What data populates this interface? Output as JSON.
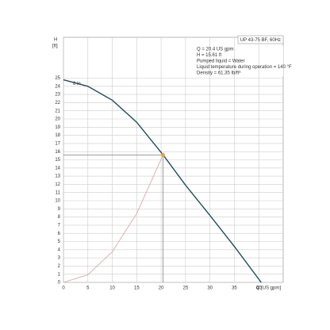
{
  "chart_data": {
    "type": "line",
    "title": "UP 43-75 BF, 60Hz",
    "y_label": "H",
    "y_unit": "[ft]",
    "x_label": "Q [US gpm]",
    "annotations": [
      "Q = 20.4 US gpm",
      "H = 15.61 ft",
      "Pumped liquid = Water",
      "Liquid temperature during operation = 140 °F",
      "Density = 61.35 lb/ft³"
    ],
    "xlim": [
      0,
      45
    ],
    "ylim": [
      0,
      30
    ],
    "xticks": [
      0,
      5,
      10,
      15,
      20,
      25,
      30,
      35,
      40
    ],
    "yticks": [
      0,
      1,
      2,
      3,
      4,
      5,
      6,
      7,
      8,
      9,
      10,
      11,
      12,
      13,
      14,
      15,
      16,
      17,
      18,
      19,
      20,
      21,
      22,
      23,
      24,
      25
    ],
    "grid": true,
    "series": [
      {
        "name": "8 in",
        "color": "#1e4f5c",
        "x": [
          0,
          5,
          10,
          15,
          20.4,
          25,
          30,
          35,
          40.5
        ],
        "values": [
          24.8,
          24.0,
          22.3,
          19.6,
          15.61,
          11.9,
          8.2,
          4.4,
          0
        ]
      },
      {
        "color": "#d8a8a8",
        "x": [
          0,
          5,
          10,
          15,
          20.4
        ],
        "values": [
          0,
          0.94,
          3.75,
          8.44,
          15.61
        ]
      }
    ],
    "operating_point": {
      "x": 20.4,
      "y": 15.61,
      "color": "#f0a030"
    }
  }
}
